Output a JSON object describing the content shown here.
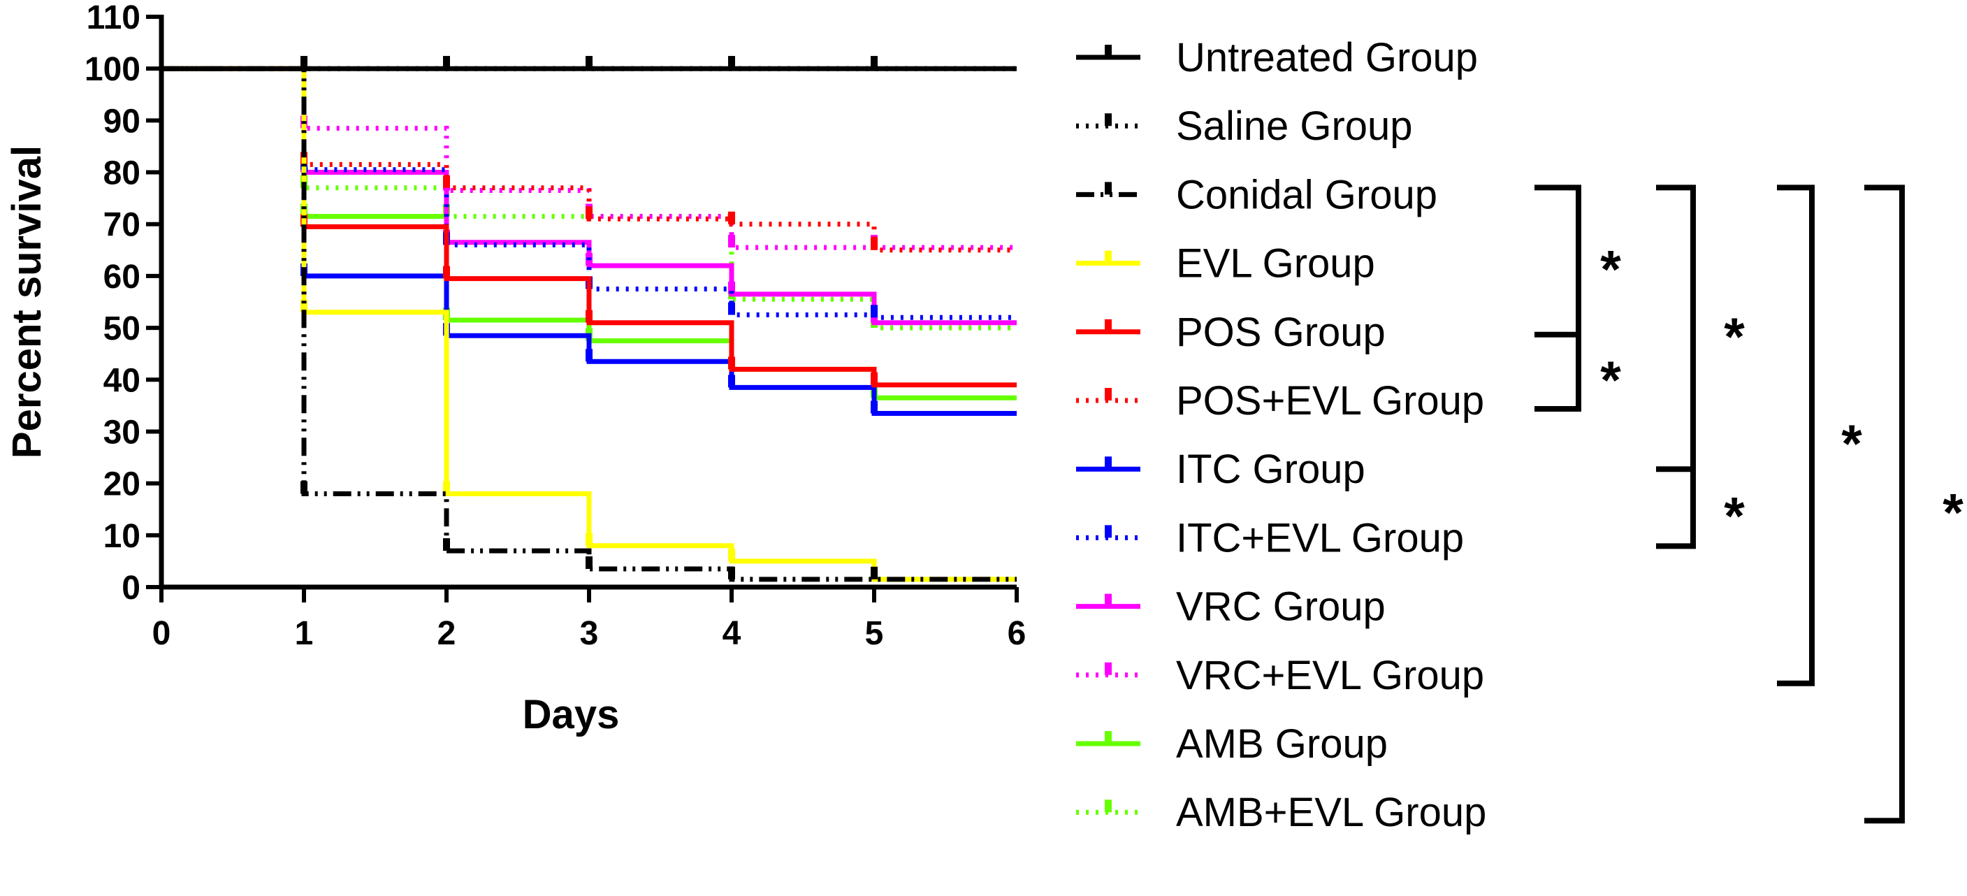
{
  "chart_data": {
    "type": "line",
    "subtype": "step-survival",
    "title": "",
    "xlabel": "Days",
    "ylabel": "Percent survival",
    "xlim": [
      0,
      6
    ],
    "ylim": [
      0,
      110
    ],
    "xticks": [
      0,
      1,
      2,
      3,
      4,
      5,
      6
    ],
    "yticks": [
      0,
      10,
      20,
      30,
      40,
      50,
      60,
      70,
      80,
      90,
      100,
      110
    ],
    "x": [
      0,
      1,
      2,
      3,
      4,
      5,
      6
    ],
    "series": [
      {
        "name": "Untreated Group",
        "color": "#000000",
        "style": "solid",
        "values": [
          100,
          100,
          100,
          100,
          100,
          100,
          100
        ]
      },
      {
        "name": "Saline Group",
        "color": "#000000",
        "style": "dotted",
        "values": [
          100,
          100,
          100,
          100,
          100,
          100,
          100
        ]
      },
      {
        "name": "Conidal Group",
        "color": "#000000",
        "style": "dashdot",
        "values": [
          100,
          18,
          7,
          3.5,
          1.5,
          1.5,
          1.5
        ]
      },
      {
        "name": "EVL Group",
        "color": "#ffff00",
        "style": "solid",
        "values": [
          100,
          53,
          18,
          8,
          5,
          1.5,
          1.5
        ]
      },
      {
        "name": "POS Group",
        "color": "#ff0000",
        "style": "solid",
        "values": [
          100,
          69.5,
          59.5,
          51,
          42,
          39,
          39
        ]
      },
      {
        "name": "POS+EVL Group",
        "color": "#ff0000",
        "style": "dotted",
        "values": [
          100,
          81.5,
          77,
          71,
          70,
          65,
          65
        ]
      },
      {
        "name": "ITC Group",
        "color": "#0000ff",
        "style": "solid",
        "values": [
          100,
          60,
          48.5,
          43.5,
          38.5,
          33.5,
          33.5
        ]
      },
      {
        "name": "ITC+EVL Group",
        "color": "#0000ff",
        "style": "dotted",
        "values": [
          100,
          80.5,
          66,
          57.5,
          52.5,
          52,
          52
        ]
      },
      {
        "name": "VRC Group",
        "color": "#ff00ff",
        "style": "solid",
        "values": [
          100,
          80,
          66.5,
          62,
          56.5,
          51,
          51
        ]
      },
      {
        "name": "VRC+EVL Group",
        "color": "#ff00ff",
        "style": "dotted",
        "values": [
          100,
          88.5,
          76.5,
          71.5,
          65.5,
          65.5,
          65.5
        ]
      },
      {
        "name": "AMB Group",
        "color": "#66ff00",
        "style": "solid",
        "values": [
          100,
          71.5,
          51.5,
          47.5,
          42,
          36.5,
          36.5
        ]
      },
      {
        "name": "AMB+EVL Group",
        "color": "#66ff00",
        "style": "dotted",
        "values": [
          100,
          77,
          71.5,
          71.5,
          55.5,
          50,
          50
        ]
      }
    ],
    "significance_brackets": [
      {
        "from": "Conidal Group",
        "to": "POS+EVL Group",
        "mid": "POS Group",
        "labels": [
          "*",
          "*"
        ]
      },
      {
        "from": "Conidal Group",
        "to": "ITC+EVL Group",
        "mid": "ITC Group",
        "labels": [
          "*",
          "*"
        ]
      },
      {
        "from": "Conidal Group",
        "to": "VRC+EVL Group",
        "labels": [
          "*"
        ]
      },
      {
        "from": "Conidal Group",
        "to": "AMB+EVL Group",
        "labels": [
          "*"
        ]
      }
    ],
    "legend_position": "right",
    "grid": false
  }
}
